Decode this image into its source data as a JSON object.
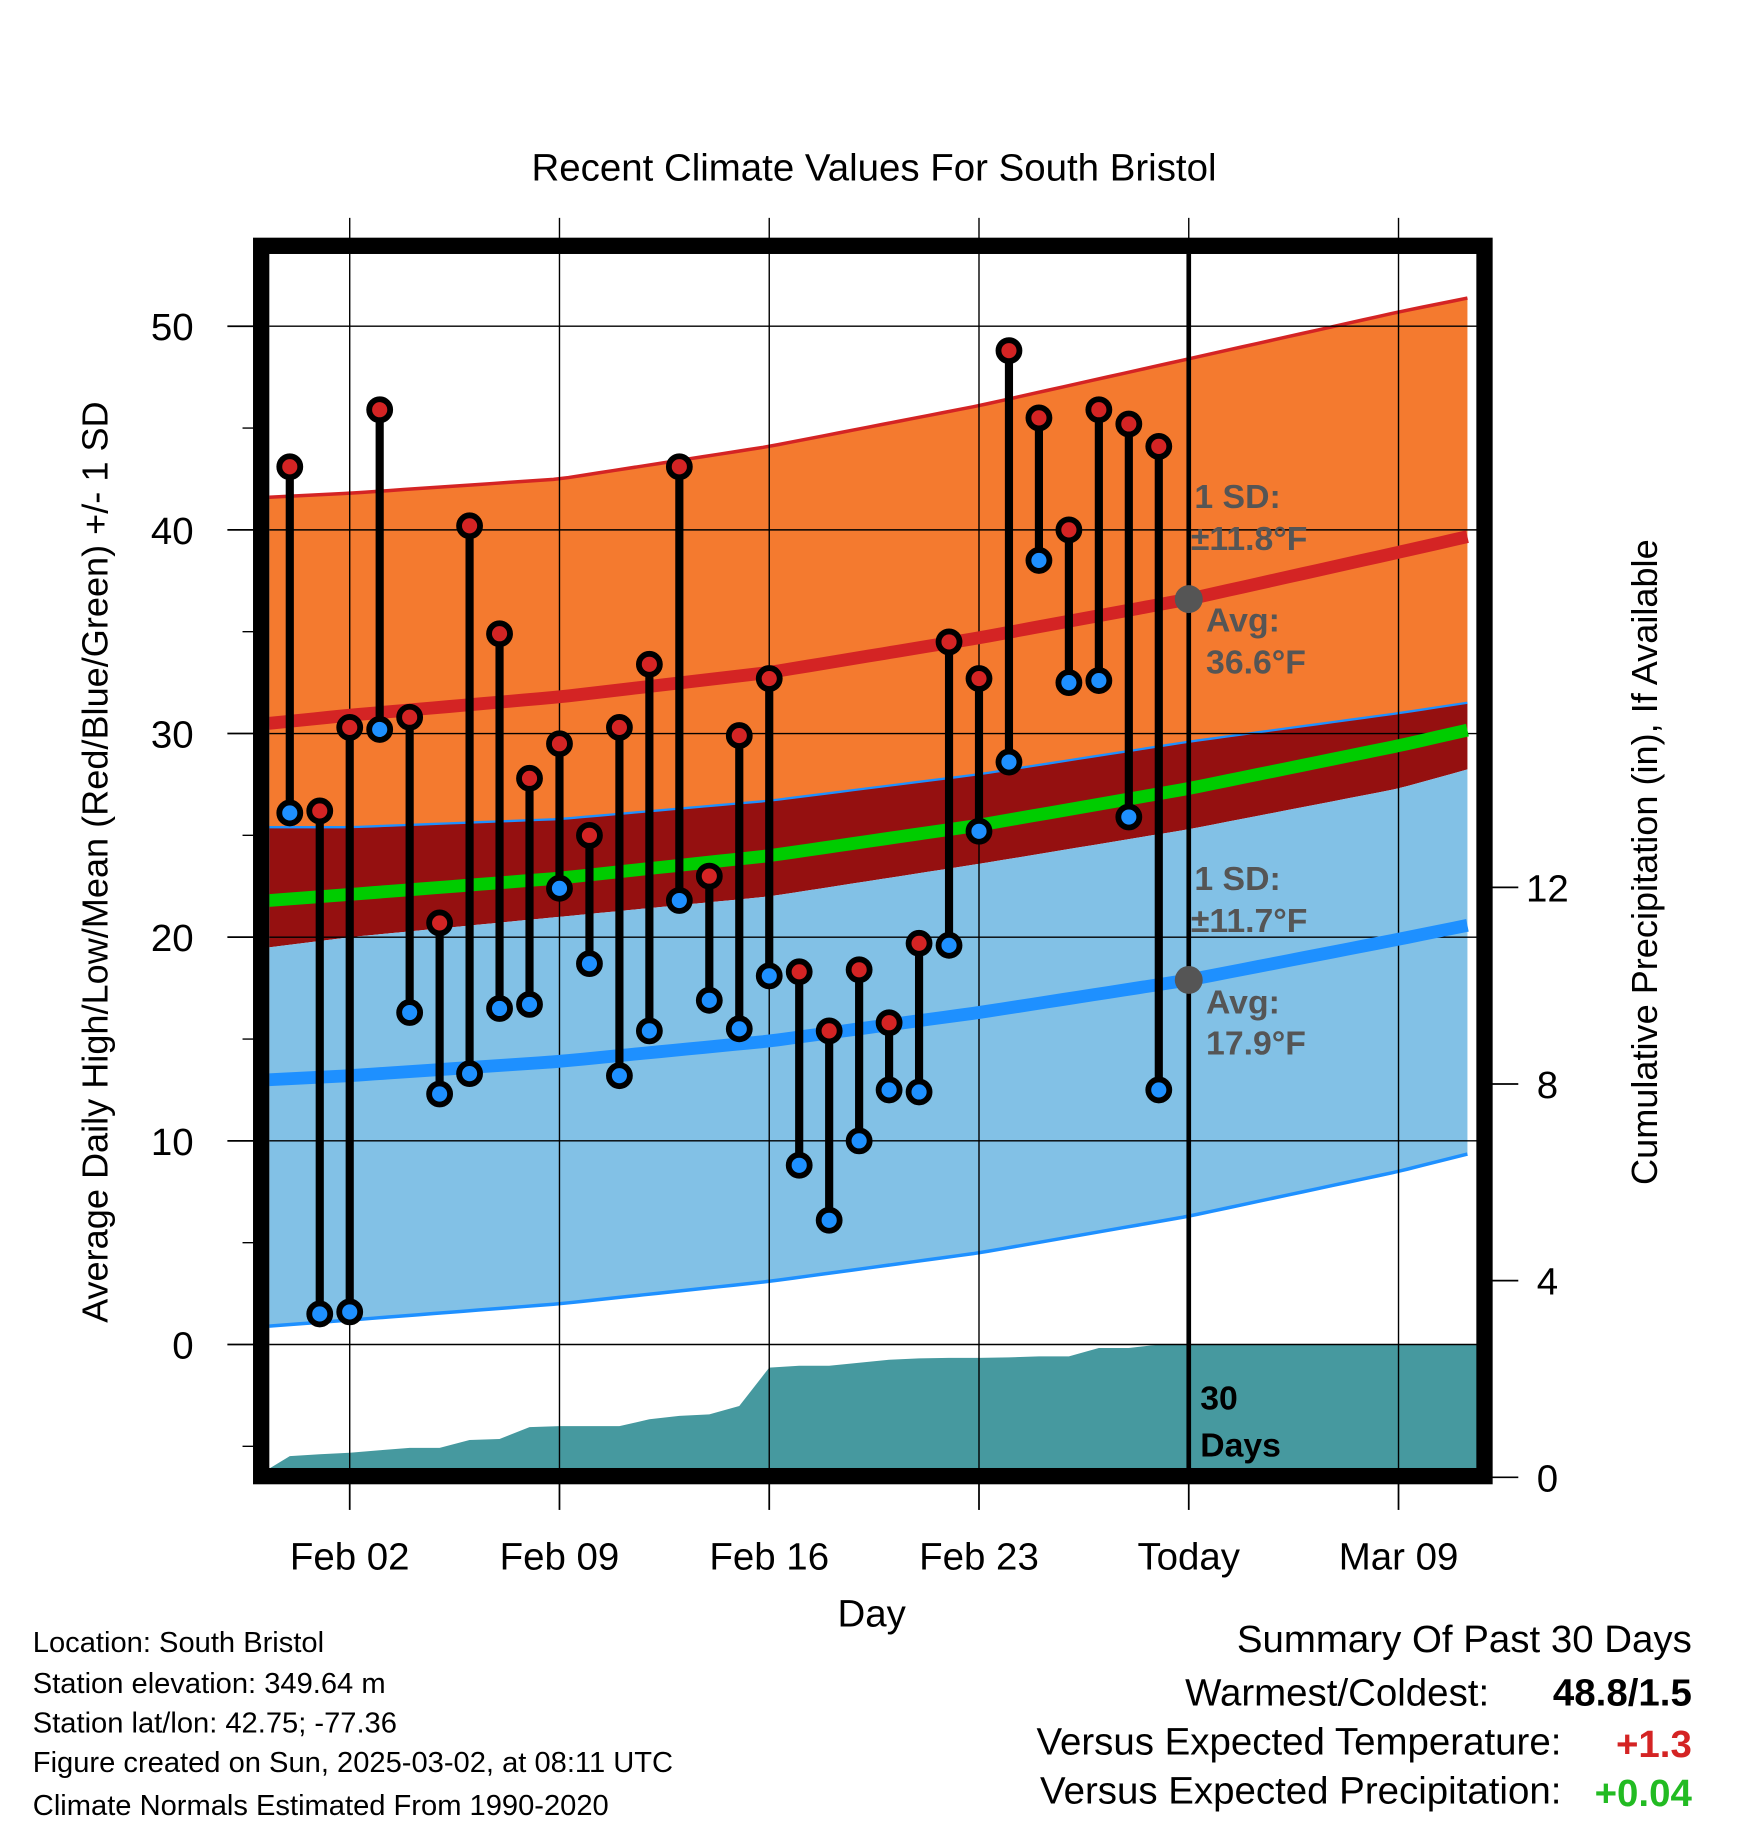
{
  "chart_data": {
    "type": "line",
    "title": "Recent Climate Values For South Bristol",
    "xlabel": "Day",
    "ylabel": "Average Daily High/Low/Mean (Red/Blue/Green) +/- 1 SD",
    "ylabel_right": "Cumulative Precipitation (in), If Available",
    "ylim": [
      -6.4,
      53.9
    ],
    "ylim_right": [
      0,
      14.3
    ],
    "yticks": [
      0,
      10,
      20,
      30,
      40,
      50
    ],
    "yticks_right": [
      0,
      4,
      8,
      12
    ],
    "xticks": [
      {
        "day": 0,
        "label": "Feb 02"
      },
      {
        "day": 7,
        "label": "Feb 09"
      },
      {
        "day": 14,
        "label": "Feb 16"
      },
      {
        "day": 21,
        "label": "Feb 23"
      },
      {
        "day": 28,
        "label": "Today"
      },
      {
        "day": 35,
        "label": "Mar 09"
      }
    ],
    "x_units": "days from Feb 02",
    "xlim": [
      -2.7,
      37.7
    ],
    "today_day": 28,
    "observed": {
      "days": [
        -2,
        -1,
        0,
        1,
        2,
        3,
        4,
        5,
        6,
        7,
        8,
        9,
        10,
        11,
        12,
        13,
        14,
        15,
        16,
        17,
        18,
        19,
        20,
        21,
        22,
        23,
        24,
        25,
        26,
        27
      ],
      "high": [
        43.1,
        26.2,
        30.3,
        45.9,
        30.8,
        20.7,
        40.2,
        34.9,
        27.8,
        29.5,
        25.0,
        30.3,
        33.4,
        43.1,
        23.0,
        29.9,
        32.7,
        18.3,
        15.4,
        18.4,
        15.8,
        19.7,
        34.5,
        32.7,
        48.8,
        45.5,
        40.0,
        45.9,
        45.2,
        44.1
      ],
      "low": [
        26.1,
        1.5,
        1.6,
        30.2,
        16.3,
        12.3,
        13.3,
        16.5,
        16.7,
        22.4,
        18.7,
        13.2,
        15.4,
        21.8,
        16.9,
        15.5,
        18.1,
        8.8,
        6.1,
        10.0,
        12.5,
        12.4,
        19.6,
        25.2,
        28.6,
        38.5,
        32.5,
        32.6,
        25.9,
        12.5
      ],
      "cumulative_precip": [
        0.43,
        0.47,
        0.5,
        0.55,
        0.6,
        0.6,
        0.76,
        0.78,
        1.02,
        1.04,
        1.04,
        1.04,
        1.18,
        1.25,
        1.28,
        1.45,
        2.23,
        2.27,
        2.27,
        2.33,
        2.39,
        2.42,
        2.43,
        2.43,
        2.44,
        2.46,
        2.46,
        2.63,
        2.63,
        2.7
      ]
    },
    "normals": {
      "days": [
        -2.7,
        0,
        7,
        14,
        21,
        28,
        35,
        37.7
      ],
      "high_upper": [
        41.6,
        41.8,
        42.5,
        44.1,
        46.1,
        48.4,
        50.7,
        51.5
      ],
      "high_avg": [
        30.5,
        30.9,
        31.8,
        33.0,
        34.7,
        36.6,
        38.9,
        39.8
      ],
      "high_lower": [
        19.5,
        20.0,
        21.0,
        22.0,
        23.6,
        25.3,
        27.3,
        28.4
      ],
      "low_upper": [
        25.4,
        25.4,
        25.8,
        26.7,
        28.0,
        29.6,
        31.0,
        31.6
      ],
      "low_avg": [
        13.0,
        13.2,
        13.9,
        14.9,
        16.3,
        17.9,
        19.9,
        20.7
      ],
      "low_lower": [
        0.9,
        1.2,
        2.0,
        3.1,
        4.5,
        6.3,
        8.5,
        9.5
      ],
      "mean": [
        21.8,
        22.1,
        22.9,
        24.0,
        25.5,
        27.3,
        29.4,
        30.3
      ]
    },
    "annotations": {
      "high_sd_label": "1 SD:",
      "high_sd_value": "±11.8°F",
      "high_avg_label": "Avg:",
      "high_avg_value": "36.6°F",
      "low_sd_label": "1 SD:",
      "low_sd_value": "±11.7°F",
      "low_avg_label": "Avg:",
      "low_avg_value": "17.9°F",
      "days_label_1": "30",
      "days_label_2": "Days"
    },
    "colors": {
      "high_band": "#f47a2f",
      "overlap": "#951010",
      "low_band": "#82c1e6",
      "mean": "#00cc00",
      "high_line": "#d42424",
      "low_line": "#1e90ff",
      "precip": "#46999f",
      "ann": "#555555"
    }
  },
  "footer": {
    "location": "Location: South Bristol",
    "elevation": "Station elevation: 349.64 m",
    "latlon": "Station lat/lon: 42.75; -77.36",
    "created": "Figure created on Sun, 2025-03-02, at 08:11 UTC",
    "normals": "Climate Normals Estimated From 1990-2020"
  },
  "summary": {
    "title": "Summary Of Past 30 Days",
    "warm_label": "Warmest/Coldest:",
    "warm_value": "48.8/1.5",
    "temp_label": "Versus Expected Temperature:",
    "temp_value": "+1.3",
    "precip_label": "Versus Expected Precipitation:",
    "precip_value": "+0.04"
  }
}
